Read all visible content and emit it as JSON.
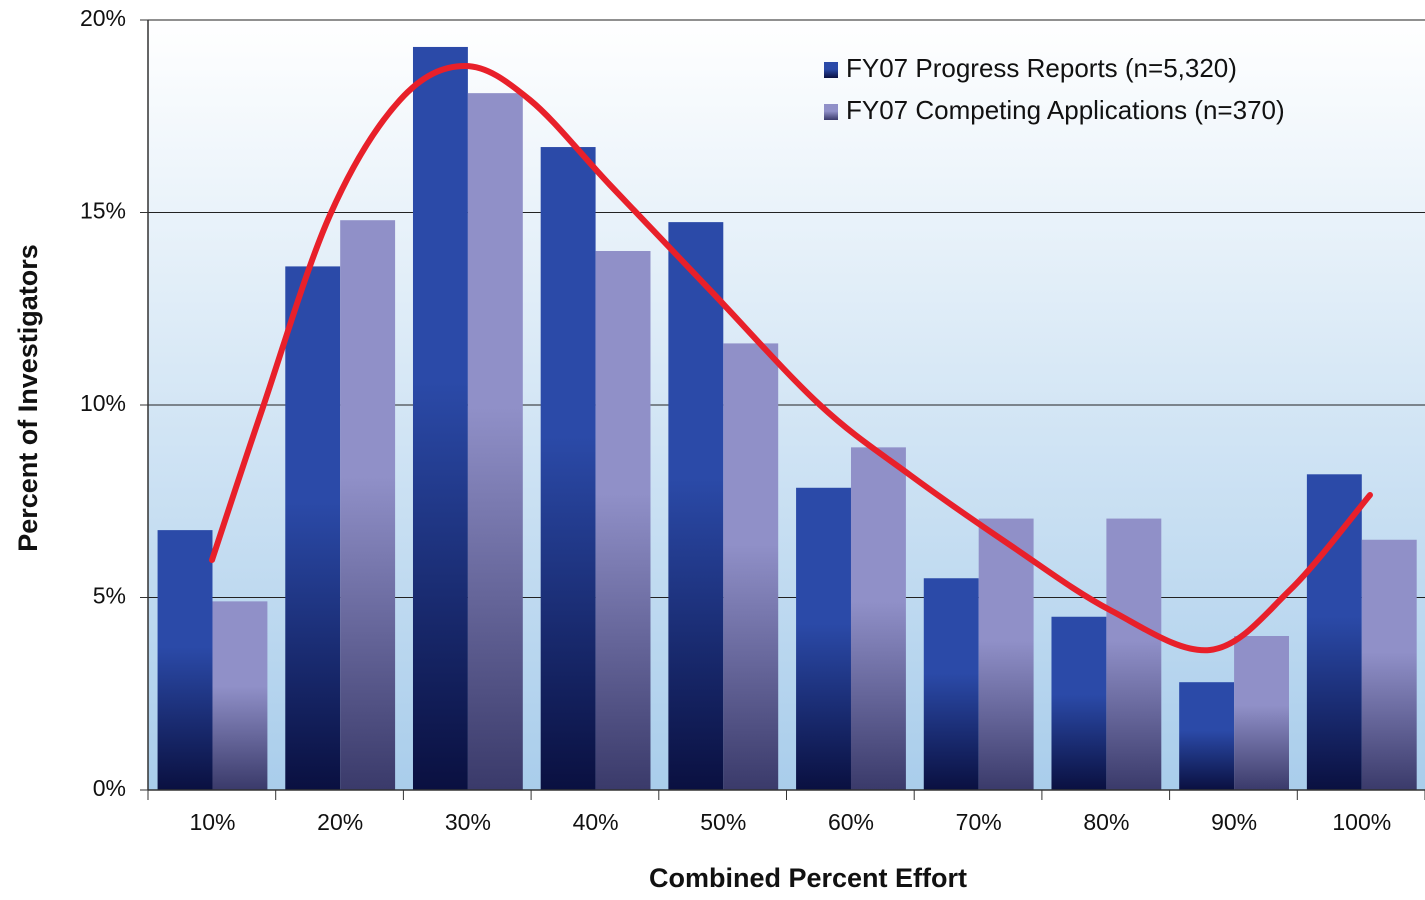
{
  "chart_data": {
    "type": "bar",
    "x_label": "Combined Percent Effort",
    "y_label": "Percent of Investigators",
    "categories": [
      "10%",
      "20%",
      "30%",
      "40%",
      "50%",
      "60%",
      "70%",
      "80%",
      "90%",
      "100%"
    ],
    "series": [
      {
        "name": "FY07 Progress Reports (n=5,320)",
        "color": "#2b4aa8",
        "values": [
          6.75,
          13.6,
          19.3,
          16.7,
          14.75,
          7.85,
          5.5,
          4.5,
          2.8,
          8.2
        ]
      },
      {
        "name": "FY07 Competing Applications (n=370)",
        "color": "#9090c8",
        "values": [
          4.9,
          14.8,
          18.1,
          14.0,
          11.6,
          8.9,
          7.05,
          7.05,
          4.0,
          6.5
        ]
      }
    ],
    "ylim": [
      0,
      20
    ],
    "yticks": [
      {
        "value": 0,
        "label": "0%"
      },
      {
        "value": 5,
        "label": "5%"
      },
      {
        "value": 10,
        "label": "10%"
      },
      {
        "value": 15,
        "label": "15%"
      },
      {
        "value": 20,
        "label": "20%"
      }
    ],
    "grid": true,
    "legend": "top-right"
  }
}
